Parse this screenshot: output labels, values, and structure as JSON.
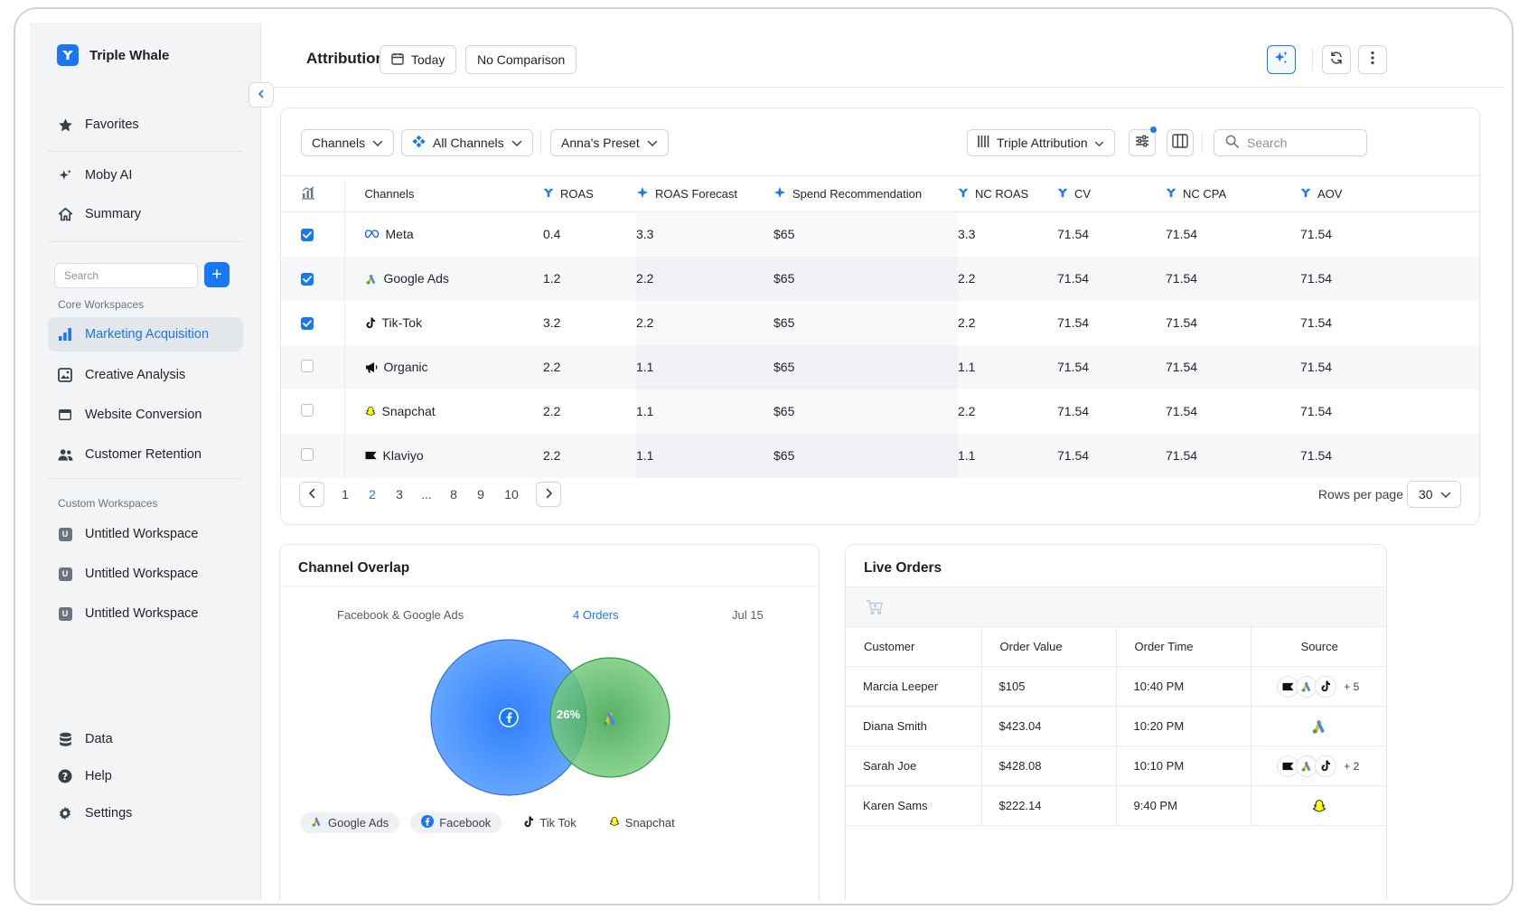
{
  "sidebar": {
    "brand": "Triple Whale",
    "favorites": "Favorites",
    "moby": "Moby AI",
    "summary": "Summary",
    "search_placeholder": "Search",
    "core_section": "Core Workspaces",
    "core_items": [
      "Marketing Acquisition",
      "Creative Analysis",
      "Website Conversion",
      "Customer Retention"
    ],
    "custom_section": "Custom Workspaces",
    "custom_items": [
      "Untitled Workspace",
      "Untitled Workspace",
      "Untitled Workspace"
    ],
    "custom_badge": "U",
    "bottom_items": [
      "Data",
      "Help",
      "Settings"
    ]
  },
  "header": {
    "title": "Attribution",
    "date_label": "Today",
    "comparison_label": "No Comparison"
  },
  "toolbar": {
    "channels": "Channels",
    "all_channels": "All Channels",
    "preset": "Anna's Preset",
    "attribution_model": "Triple Attribution",
    "search_placeholder": "Search"
  },
  "table": {
    "columns": [
      "Channels",
      "ROAS",
      "ROAS Forecast",
      "Spend Recommendation",
      "NC ROAS",
      "CV",
      "NC CPA",
      "AOV"
    ],
    "rows": [
      {
        "checked": true,
        "channel": "Meta",
        "icon": "meta-icon",
        "roas": "0.4",
        "forecast": "3.3",
        "spend": "$65",
        "nc_roas": "3.3",
        "cv": "71.54",
        "nc_cpa": "71.54",
        "aov": "71.54"
      },
      {
        "checked": true,
        "channel": "Google Ads",
        "icon": "google-ads-icon",
        "roas": "1.2",
        "forecast": "2.2",
        "spend": "$65",
        "nc_roas": "2.2",
        "cv": "71.54",
        "nc_cpa": "71.54",
        "aov": "71.54"
      },
      {
        "checked": true,
        "channel": "Tik-Tok",
        "icon": "tiktok-icon",
        "roas": "3.2",
        "forecast": "2.2",
        "spend": "$65",
        "nc_roas": "2.2",
        "cv": "71.54",
        "nc_cpa": "71.54",
        "aov": "71.54"
      },
      {
        "checked": false,
        "channel": "Organic",
        "icon": "megaphone-icon",
        "roas": "2.2",
        "forecast": "1.1",
        "spend": "$65",
        "nc_roas": "1.1",
        "cv": "71.54",
        "nc_cpa": "71.54",
        "aov": "71.54"
      },
      {
        "checked": false,
        "channel": "Snapchat",
        "icon": "snapchat-icon",
        "roas": "2.2",
        "forecast": "1.1",
        "spend": "$65",
        "nc_roas": "2.2",
        "cv": "71.54",
        "nc_cpa": "71.54",
        "aov": "71.54"
      },
      {
        "checked": false,
        "channel": "Klaviyo",
        "icon": "klaviyo-icon",
        "roas": "2.2",
        "forecast": "1.1",
        "spend": "$65",
        "nc_roas": "1.1",
        "cv": "71.54",
        "nc_cpa": "71.54",
        "aov": "71.54"
      }
    ]
  },
  "pagination": {
    "pages": [
      "1",
      "2",
      "3",
      "...",
      "8",
      "9",
      "10"
    ],
    "current": "2",
    "rows_per_page_label": "Rows per page",
    "rows_per_page": "30"
  },
  "overlap": {
    "title": "Channel Overlap",
    "pair": "Facebook & Google Ads",
    "orders": "4 Orders",
    "date": "Jul 15",
    "percent": "26%",
    "legend": [
      "Google Ads",
      "Facebook",
      "Tik Tok",
      "Snapchat"
    ],
    "colors": {
      "facebook": "#3d8bff",
      "google": "#5fbf6a"
    }
  },
  "orders": {
    "title": "Live Orders",
    "columns": [
      "Customer",
      "Order Value",
      "Order Time",
      "Source"
    ],
    "rows": [
      {
        "customer": "Marcia Leeper",
        "value": "$105",
        "time": "10:40 PM",
        "sources": [
          "klaviyo-icon",
          "google-ads-icon",
          "tiktok-icon"
        ],
        "more": "+ 5"
      },
      {
        "customer": "Diana Smith",
        "value": "$423.04",
        "time": "10:20 PM",
        "sources": [
          "google-ads-icon"
        ],
        "more": ""
      },
      {
        "customer": "Sarah Joe",
        "value": "$428.08",
        "time": "10:10 PM",
        "sources": [
          "klaviyo-icon",
          "google-ads-icon",
          "tiktok-icon"
        ],
        "more": "+ 2"
      },
      {
        "customer": "Karen Sams",
        "value": "$222.14",
        "time": "9:40 PM",
        "sources": [
          "snapchat-icon"
        ],
        "more": ""
      }
    ]
  },
  "colors": {
    "accent": "#1877f2"
  }
}
